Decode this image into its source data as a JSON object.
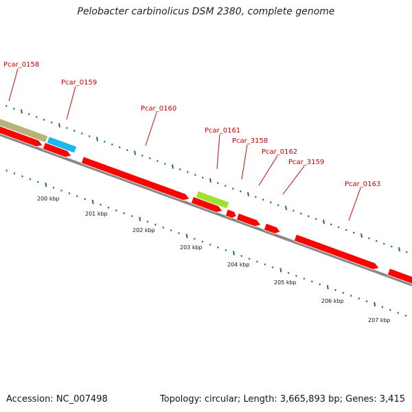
{
  "title": "Pelobacter carbinolicus DSM 2380, complete genome",
  "footer": {
    "accession": "Accession: NC_007498",
    "summary": "Topology: circular; Length: 3,665,893 bp; Genes: 3,415"
  },
  "colors": {
    "backbone": "#888888",
    "cds": "#ff0000",
    "tick": "#1f7a1f",
    "label_line": "#cc0000"
  },
  "genes": [
    {
      "name": "Pcar_0158",
      "color": "#b8b27a"
    },
    {
      "name": "Pcar_0159",
      "color": "#1ab6f0"
    },
    {
      "name": "Pcar_0160",
      "color": "#ff0000"
    },
    {
      "name": "Pcar_0161",
      "color": "#9ee02a"
    },
    {
      "name": "Pcar_3158",
      "color": "#ff0000"
    },
    {
      "name": "Pcar_0162",
      "color": "#ff0000"
    },
    {
      "name": "Pcar_3159",
      "color": "#ff0000"
    },
    {
      "name": "Pcar_0163",
      "color": "#ff0000"
    }
  ],
  "scale_labels": [
    "200 kbp",
    "201 kbp",
    "202 kbp",
    "203 kbp",
    "204 kbp",
    "205 kbp",
    "206 kbp",
    "207 kbp"
  ]
}
